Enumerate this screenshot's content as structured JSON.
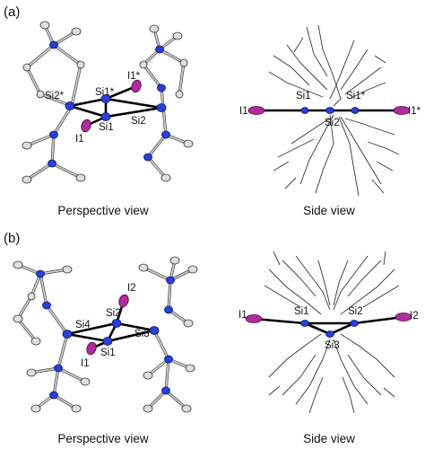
{
  "panels": [
    {
      "label": "(a)",
      "perspective_caption": "Perspective view",
      "side_caption": "Side view",
      "perspective_atoms": [
        "Si2*",
        "Si1*",
        "I1*",
        "Si1",
        "Si2",
        "I1"
      ],
      "side_atoms": [
        "I1",
        "Si1",
        "Si2",
        "Si1*",
        "I1*"
      ]
    },
    {
      "label": "(b)",
      "perspective_caption": "Perspective view",
      "side_caption": "Side view",
      "perspective_atoms": [
        "I2",
        "Si2",
        "Si4",
        "Si3",
        "Si1",
        "I1"
      ],
      "side_atoms": [
        "I1",
        "Si1",
        "Si2",
        "I2",
        "Si3"
      ]
    }
  ],
  "colors": {
    "iodine": "#b02aa0",
    "silicon": "#2a3fd6",
    "carbon": "#dedede",
    "bond": "#000000"
  }
}
